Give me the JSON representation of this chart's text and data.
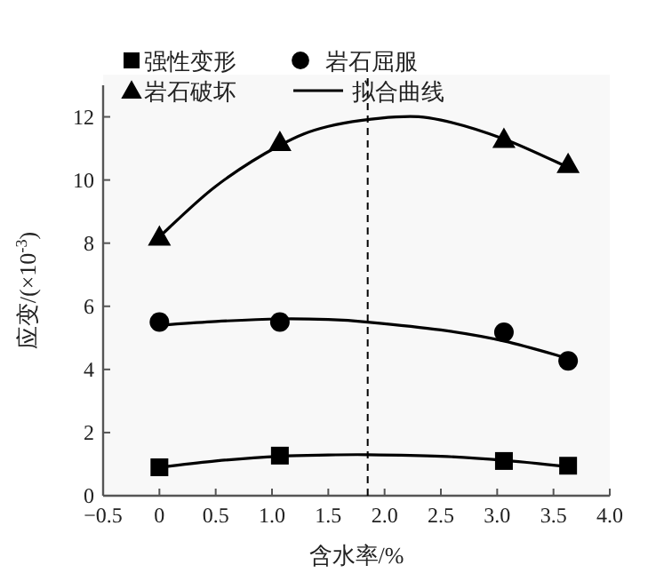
{
  "chart_data": {
    "type": "scatter",
    "xlabel": "含水率/%",
    "ylabel": "应变/(×10$^{-3}$)",
    "xlim": [
      -0.5,
      4.0
    ],
    "ylim": [
      0,
      13
    ],
    "xticks": [
      {
        "value": -0.5,
        "label": "−0.5"
      },
      0,
      0.5,
      {
        "value": 1.0,
        "label": "1.0"
      },
      1.5,
      {
        "value": 2.0,
        "label": "2.0"
      },
      2.5,
      {
        "value": 3.0,
        "label": "3.0"
      },
      3.5,
      {
        "value": 4.0,
        "label": "4.0"
      }
    ],
    "yticks": [
      0,
      2,
      4,
      6,
      8,
      10,
      12
    ],
    "legend": "top left",
    "grid": false,
    "ref_lines": [
      {
        "axis": "x",
        "value": 1.85,
        "color": "#000000",
        "line_style": "dashed"
      }
    ],
    "series": [
      {
        "name": "强性变形",
        "type": "scatter",
        "marker": "square",
        "color": "#000000",
        "x": [
          0,
          1.07,
          3.06,
          3.63
        ],
        "values": [
          0.9,
          1.27,
          1.1,
          0.95
        ]
      },
      {
        "name": "岩石屈服",
        "type": "scatter",
        "marker": "circle",
        "color": "#000000",
        "x": [
          0,
          1.07,
          3.06,
          3.63
        ],
        "values": [
          5.5,
          5.5,
          5.18,
          4.27
        ]
      },
      {
        "name": "岩石破坏",
        "type": "scatter",
        "marker": "triangle",
        "color": "#000000",
        "x": [
          0,
          1.07,
          3.06,
          3.63
        ],
        "values": [
          8.2,
          11.2,
          11.3,
          10.5
        ]
      },
      {
        "name": "拟合曲线",
        "type": "line",
        "marker": "none",
        "line_style": "solid",
        "color": "#000000",
        "x": [
          0,
          0.5,
          1.07,
          1.5,
          1.85,
          2.5,
          3.06,
          3.63
        ],
        "values": [
          0.9,
          1.1,
          1.25,
          1.29,
          1.3,
          1.25,
          1.12,
          0.92
        ]
      },
      {
        "type": "line",
        "marker": "none",
        "line_style": "solid",
        "color": "#000000",
        "x": [
          0,
          0.5,
          1.07,
          1.5,
          1.85,
          2.5,
          3.06,
          3.63
        ],
        "values": [
          5.4,
          5.52,
          5.6,
          5.58,
          5.5,
          5.25,
          4.9,
          4.35
        ]
      },
      {
        "type": "line",
        "marker": "none",
        "line_style": "solid",
        "color": "#000000",
        "x": [
          0,
          0.5,
          1.07,
          1.5,
          2.1,
          2.5,
          3.06,
          3.63
        ],
        "values": [
          8.2,
          9.8,
          11.1,
          11.7,
          12.0,
          11.9,
          11.3,
          10.4
        ]
      }
    ]
  }
}
